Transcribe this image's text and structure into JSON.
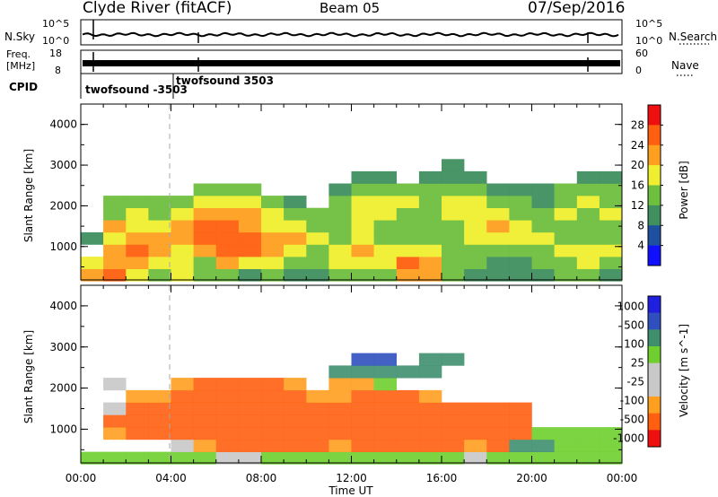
{
  "header": {
    "station": "Clyde River (fitACF)",
    "beam": "Beam 05",
    "date": "07/Sep/2016"
  },
  "noise_panel": {
    "left_label": "N.Sky",
    "right_label": "N.Search",
    "left_ticks": [
      "10^5",
      "10^0"
    ],
    "right_ticks": [
      "10^5",
      "10^0"
    ]
  },
  "freq_panel": {
    "left_label_line1": "Freq.",
    "left_label_line2": "[MHz]",
    "right_label": "Nave",
    "left_ticks": [
      "18",
      "8"
    ],
    "right_ticks": [
      "60",
      "0"
    ]
  },
  "cpid_panel": {
    "label": "CPID",
    "modes": [
      "twofsound -3503",
      "twofsound 3503"
    ]
  },
  "x_axis": {
    "title": "Time UT",
    "ticks": [
      "00:00",
      "04:00",
      "08:00",
      "12:00",
      "16:00",
      "20:00",
      "00:00"
    ]
  },
  "colors": {
    "power": [
      "#1010ff",
      "#1f4f9f",
      "#3f8f5f",
      "#6fbf3f",
      "#efef2f",
      "#ff9f1f",
      "#ff5f0f",
      "#ef0f0f"
    ],
    "velocity": [
      "#ef0f0f",
      "#ff5f0f",
      "#ff9f1f",
      "#c8c8c8",
      "#c8c8c8",
      "#6fcf2f",
      "#3f8f6f",
      "#2f4fbf",
      "#1f1fdf"
    ]
  },
  "chart_data": [
    {
      "type": "heatmap",
      "ylabel": "Slant Range [km]",
      "ylim": [
        180,
        4500
      ],
      "xlim": [
        "00:00",
        "00:00"
      ],
      "yticks": [
        "1000",
        "2000",
        "3000",
        "4000"
      ],
      "colorbar_label": "Power [dB]",
      "colorbar_ticks": [
        "4",
        "8",
        "12",
        "16",
        "20",
        "24",
        "28"
      ],
      "colorbar_range": [
        0,
        32
      ],
      "x_hours": [
        0,
        1,
        2,
        3,
        4,
        5,
        6,
        7,
        8,
        9,
        10,
        11,
        12,
        13,
        14,
        15,
        16,
        17,
        18,
        19,
        20,
        21,
        22,
        23
      ],
      "y_km": [
        300,
        600,
        900,
        1200,
        1500,
        1800,
        2100,
        2400,
        2700,
        3000
      ],
      "values": [
        [
          20,
          18,
          0,
          8,
          0,
          0,
          0,
          0,
          0,
          0
        ],
        [
          24,
          22,
          20,
          16,
          20,
          14,
          12,
          0,
          0,
          0
        ],
        [
          16,
          20,
          24,
          20,
          18,
          16,
          12,
          0,
          0,
          0
        ],
        [
          12,
          16,
          20,
          22,
          18,
          14,
          12,
          0,
          0,
          0
        ],
        [
          18,
          16,
          18,
          20,
          20,
          16,
          14,
          0,
          0,
          0
        ],
        [
          14,
          14,
          22,
          24,
          24,
          20,
          16,
          12,
          0,
          0
        ],
        [
          12,
          20,
          26,
          26,
          24,
          20,
          18,
          12,
          0,
          0
        ],
        [
          10,
          18,
          24,
          24,
          22,
          20,
          16,
          12,
          0,
          0
        ],
        [
          12,
          16,
          20,
          20,
          18,
          16,
          12,
          0,
          0,
          0
        ],
        [
          10,
          14,
          18,
          20,
          18,
          14,
          10,
          0,
          0,
          0
        ],
        [
          8,
          12,
          14,
          16,
          14,
          12,
          0,
          0,
          0,
          0
        ],
        [
          12,
          16,
          16,
          14,
          12,
          14,
          14,
          10,
          0,
          0
        ],
        [
          12,
          16,
          20,
          18,
          16,
          18,
          16,
          12,
          8,
          0
        ],
        [
          14,
          16,
          16,
          14,
          12,
          16,
          18,
          12,
          8,
          0
        ],
        [
          22,
          24,
          18,
          14,
          12,
          14,
          16,
          12,
          0,
          0
        ],
        [
          20,
          22,
          16,
          12,
          12,
          14,
          14,
          12,
          8,
          0
        ],
        [
          12,
          14,
          14,
          12,
          12,
          16,
          16,
          14,
          10,
          8
        ],
        [
          10,
          12,
          14,
          16,
          16,
          18,
          16,
          12,
          8,
          0
        ],
        [
          8,
          10,
          12,
          18,
          20,
          18,
          14,
          10,
          0,
          0
        ],
        [
          8,
          10,
          12,
          16,
          16,
          14,
          12,
          8,
          0,
          0
        ],
        [
          10,
          12,
          14,
          16,
          14,
          12,
          10,
          8,
          0,
          0
        ],
        [
          12,
          14,
          16,
          14,
          14,
          16,
          14,
          12,
          0,
          0
        ],
        [
          12,
          16,
          18,
          14,
          12,
          14,
          16,
          12,
          8,
          0
        ],
        [
          10,
          14,
          16,
          12,
          12,
          16,
          14,
          12,
          8,
          0
        ]
      ]
    },
    {
      "type": "heatmap",
      "ylabel": "Slant Range [km]",
      "ylim": [
        180,
        4500
      ],
      "xlim": [
        "00:00",
        "00:00"
      ],
      "yticks": [
        "1000",
        "2000",
        "3000",
        "4000"
      ],
      "colorbar_label": "Velocity [m s^-1]",
      "colorbar_ticks": [
        "1000",
        "500",
        "100",
        "25",
        "-25",
        "-100",
        "-500",
        "-1000"
      ],
      "x_hours": [
        0,
        1,
        2,
        3,
        4,
        5,
        6,
        7,
        8,
        9,
        10,
        11,
        12,
        13,
        14,
        15,
        16,
        17,
        18,
        19,
        20,
        21,
        22,
        23
      ],
      "y_km": [
        300,
        600,
        900,
        1200,
        1500,
        1800,
        2100,
        2400,
        2700,
        3000
      ],
      "values": [
        [
          50,
          0,
          0,
          0,
          0,
          0,
          0,
          0,
          0,
          0
        ],
        [
          80,
          0,
          -50,
          -150,
          -20,
          0,
          10,
          0,
          0,
          0
        ],
        [
          50,
          0,
          -150,
          -200,
          -100,
          -50,
          0,
          0,
          0,
          0
        ],
        [
          50,
          0,
          -150,
          -200,
          -150,
          -50,
          0,
          0,
          0,
          0
        ],
        [
          80,
          -20,
          -200,
          -250,
          -200,
          -150,
          -50,
          0,
          0,
          0
        ],
        [
          30,
          -80,
          -200,
          -250,
          -250,
          -150,
          -100,
          0,
          0,
          0
        ],
        [
          20,
          -100,
          -250,
          -300,
          -250,
          -200,
          -150,
          0,
          0,
          0
        ],
        [
          20,
          -150,
          -250,
          -300,
          -250,
          -200,
          -150,
          0,
          0,
          0
        ],
        [
          30,
          -150,
          -200,
          -250,
          -200,
          -150,
          -100,
          0,
          0,
          0
        ],
        [
          30,
          -120,
          -200,
          -200,
          -150,
          -100,
          -50,
          0,
          0,
          0
        ],
        [
          40,
          -100,
          -150,
          -150,
          -100,
          -50,
          0,
          0,
          0,
          0
        ],
        [
          40,
          -80,
          -150,
          -150,
          -100,
          -50,
          -50,
          200,
          0,
          0
        ],
        [
          50,
          -100,
          -200,
          -200,
          -150,
          -100,
          -50,
          300,
          600,
          0
        ],
        [
          60,
          -200,
          -250,
          -250,
          -200,
          -150,
          100,
          400,
          600,
          0
        ],
        [
          80,
          -300,
          -400,
          -300,
          -200,
          -100,
          0,
          300,
          0,
          0
        ],
        [
          60,
          -250,
          -350,
          -250,
          -150,
          -50,
          0,
          200,
          400,
          0
        ],
        [
          40,
          -150,
          -200,
          -200,
          -100,
          0,
          0,
          0,
          300,
          0
        ],
        [
          20,
          -50,
          -100,
          -150,
          -150,
          0,
          0,
          0,
          0,
          0
        ],
        [
          30,
          -100,
          -300,
          -350,
          -300,
          0,
          0,
          0,
          0,
          0
        ],
        [
          30,
          300,
          -100,
          -300,
          -200,
          0,
          0,
          0,
          0,
          0
        ],
        [
          30,
          200,
          100,
          0,
          0,
          0,
          0,
          0,
          0,
          0
        ],
        [
          60,
          80,
          60,
          0,
          0,
          0,
          0,
          0,
          0,
          0
        ],
        [
          60,
          80,
          60,
          0,
          0,
          0,
          0,
          0,
          0,
          0
        ],
        [
          50,
          60,
          40,
          0,
          0,
          0,
          0,
          0,
          0,
          0
        ]
      ]
    }
  ]
}
